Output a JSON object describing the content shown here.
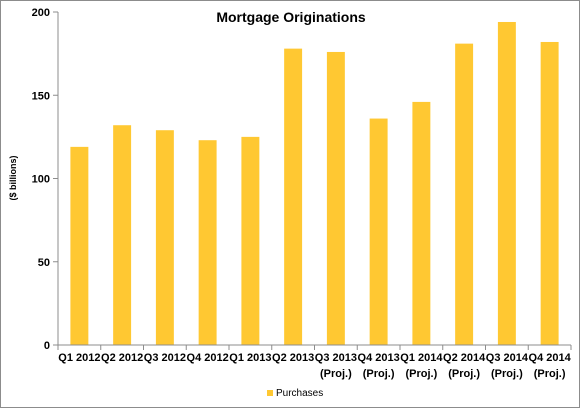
{
  "chart_data": {
    "type": "bar",
    "title": "Mortgage Originations",
    "xlabel": "",
    "ylabel": "($ billions)",
    "ylim": [
      0,
      200
    ],
    "yticks": [
      0,
      50,
      100,
      150,
      200
    ],
    "grid": false,
    "legend_position": "bottom",
    "categories": [
      [
        "Q1 2012"
      ],
      [
        "Q2 2012"
      ],
      [
        "Q3 2012"
      ],
      [
        "Q4 2012"
      ],
      [
        "Q1 2013"
      ],
      [
        "Q2 2013"
      ],
      [
        "Q3 2013",
        "(Proj.)"
      ],
      [
        "Q4 2013",
        "(Proj.)"
      ],
      [
        "Q1 2014",
        "(Proj.)"
      ],
      [
        "Q2 2014",
        "(Proj.)"
      ],
      [
        "Q3 2014",
        "(Proj.)"
      ],
      [
        "Q4 2014",
        "(Proj.)"
      ]
    ],
    "series": [
      {
        "name": "Purchases",
        "color": "#ffc832",
        "values": [
          119,
          132,
          129,
          123,
          125,
          178,
          176,
          136,
          146,
          181,
          194,
          182
        ]
      }
    ]
  }
}
